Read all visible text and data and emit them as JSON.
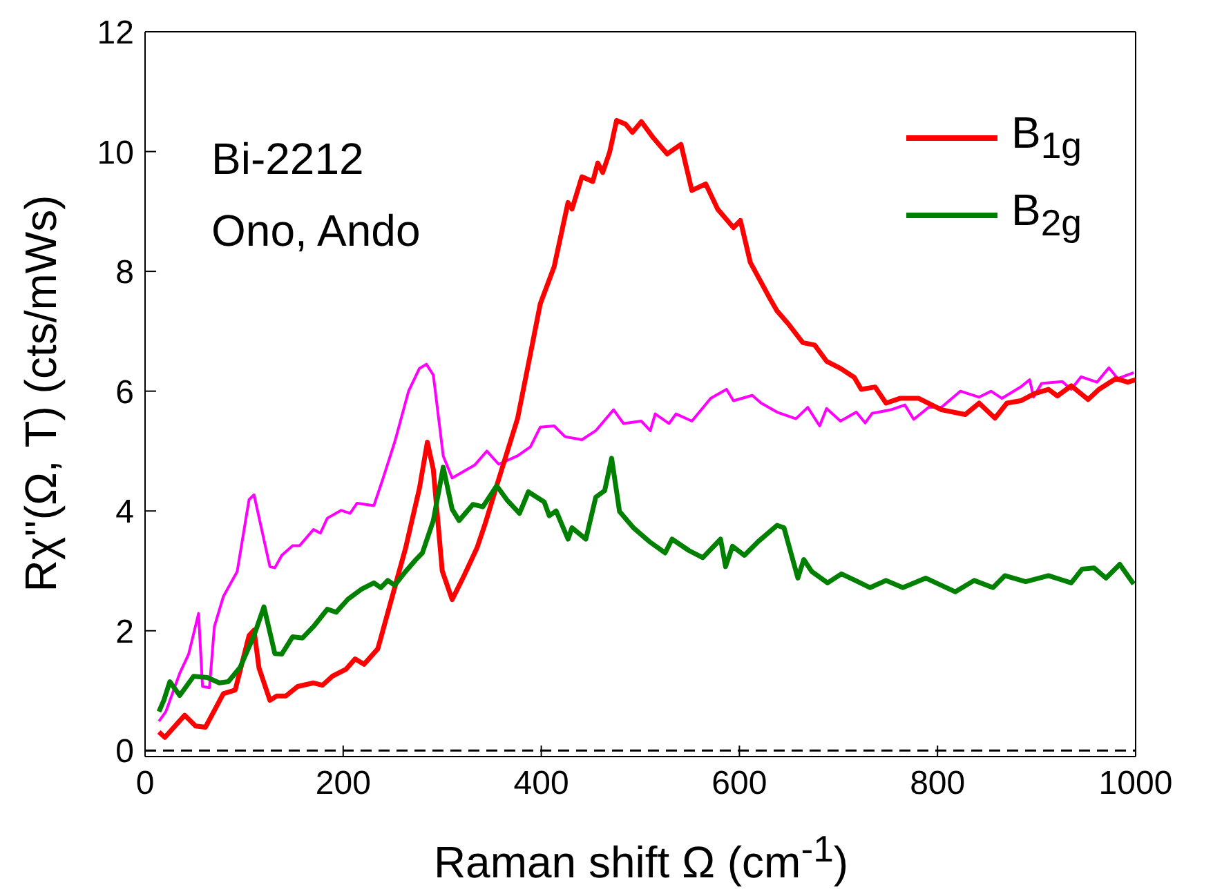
{
  "chart_data": {
    "type": "line",
    "xlabel": "Raman shift Ω (cm$^{-1}$)",
    "ylabel": "Rχ''(Ω, T) (cts/mWs)",
    "xlim": [
      0,
      1000
    ],
    "xticks": [
      0,
      200,
      400,
      600,
      800,
      1000
    ],
    "ylim": [
      -0.1,
      12
    ],
    "yticks": [
      0,
      2,
      4,
      6,
      8,
      10,
      12
    ],
    "legend": "top right",
    "marker": "none",
    "line_style": "solid",
    "annotations": [
      "Bi-2212",
      "Ono, Ando"
    ],
    "ref_lines": [
      {
        "axis": "y",
        "value": 0,
        "color": "#000000",
        "line_style": "dashed"
      }
    ],
    "series": [
      {
        "color": "#ff00ff",
        "x": [
          14,
          21,
          35,
          44,
          54,
          58,
          65,
          70,
          79,
          93,
          105,
          110,
          126,
          131,
          138,
          149,
          156,
          170,
          177,
          184,
          198,
          207,
          214,
          231,
          240,
          252,
          266,
          277,
          284,
          291,
          301,
          310,
          333,
          345,
          357,
          376,
          389,
          399,
          413,
          424,
          441,
          455,
          473,
          483,
          501,
          510,
          515,
          529,
          536,
          552,
          571,
          587,
          594,
          613,
          622,
          638,
          657,
          669,
          681,
          688,
          702,
          718,
          727,
          734,
          753,
          767,
          776,
          791,
          804,
          823,
          842,
          854,
          865,
          884,
          893,
          897,
          905,
          926,
          935,
          945,
          961,
          973,
          982,
          998
        ],
        "values": [
          0.49,
          0.65,
          1.29,
          1.61,
          2.29,
          1.07,
          1.05,
          2.07,
          2.57,
          2.99,
          4.19,
          4.27,
          3.07,
          3.05,
          3.26,
          3.42,
          3.42,
          3.69,
          3.63,
          3.88,
          4.01,
          3.96,
          4.13,
          4.09,
          4.53,
          5.15,
          6.0,
          6.38,
          6.45,
          6.27,
          4.92,
          4.55,
          4.77,
          5.0,
          4.78,
          4.92,
          5.07,
          5.4,
          5.42,
          5.24,
          5.19,
          5.34,
          5.69,
          5.46,
          5.5,
          5.34,
          5.62,
          5.46,
          5.62,
          5.5,
          5.88,
          6.03,
          5.84,
          5.93,
          5.8,
          5.65,
          5.54,
          5.73,
          5.42,
          5.71,
          5.5,
          5.65,
          5.47,
          5.63,
          5.69,
          5.77,
          5.53,
          5.73,
          5.73,
          6.0,
          5.9,
          6.0,
          5.88,
          6.07,
          6.19,
          5.9,
          6.13,
          6.16,
          6.03,
          6.24,
          6.15,
          6.39,
          6.21,
          6.31
        ]
      },
      {
        "name": "B$_{1g}$",
        "color": "#ff0000",
        "x": [
          14,
          20,
          40,
          51,
          61,
          79,
          91,
          105,
          110,
          115,
          126,
          133,
          142,
          154,
          170,
          179,
          189,
          203,
          212,
          221,
          235,
          245,
          263,
          277,
          285,
          291,
          300,
          310,
          322,
          335,
          343,
          357,
          376,
          389,
          399,
          413,
          427,
          431,
          441,
          452,
          457,
          462,
          469,
          476,
          485,
          492,
          501,
          513,
          527,
          541,
          552,
          566,
          578,
          594,
          601,
          611,
          631,
          638,
          650,
          664,
          676,
          688,
          702,
          716,
          723,
          737,
          748,
          762,
          781,
          804,
          828,
          842,
          858,
          870,
          884,
          898,
          912,
          921,
          935,
          952,
          963,
          980,
          992,
          1000
        ],
        "values": [
          0.31,
          0.22,
          0.59,
          0.41,
          0.39,
          0.95,
          1.01,
          1.92,
          2.01,
          1.38,
          0.84,
          0.91,
          0.91,
          1.07,
          1.13,
          1.09,
          1.24,
          1.36,
          1.53,
          1.44,
          1.7,
          2.3,
          3.38,
          4.38,
          5.15,
          4.69,
          3.0,
          2.52,
          2.92,
          3.38,
          3.77,
          4.53,
          5.54,
          6.62,
          7.46,
          8.08,
          9.15,
          9.04,
          9.58,
          9.5,
          9.81,
          9.65,
          9.99,
          10.52,
          10.46,
          10.32,
          10.5,
          10.23,
          9.96,
          10.12,
          9.35,
          9.46,
          9.04,
          8.73,
          8.85,
          8.15,
          7.54,
          7.34,
          7.11,
          6.81,
          6.77,
          6.5,
          6.38,
          6.23,
          6.03,
          6.07,
          5.8,
          5.88,
          5.88,
          5.69,
          5.61,
          5.8,
          5.55,
          5.8,
          5.84,
          5.96,
          6.03,
          5.92,
          6.09,
          5.86,
          6.03,
          6.21,
          6.15,
          6.19
        ]
      },
      {
        "name": "B$_{2g}$",
        "color": "#008000",
        "x": [
          14,
          19,
          25,
          35,
          49,
          63,
          75,
          84,
          96,
          110,
          120,
          131,
          138,
          149,
          159,
          170,
          184,
          193,
          205,
          219,
          231,
          238,
          245,
          252,
          263,
          273,
          280,
          291,
          301,
          310,
          317,
          331,
          341,
          355,
          366,
          378,
          387,
          403,
          408,
          415,
          427,
          431,
          445,
          455,
          464,
          471,
          479,
          493,
          509,
          525,
          532,
          549,
          563,
          581,
          586,
          593,
          605,
          619,
          638,
          645,
          659,
          665,
          673,
          689,
          703,
          717,
          732,
          748,
          765,
          788,
          818,
          837,
          856,
          868,
          889,
          912,
          935,
          946,
          958,
          970,
          984,
          998
        ],
        "values": [
          0.65,
          0.84,
          1.15,
          0.92,
          1.24,
          1.22,
          1.13,
          1.15,
          1.39,
          1.92,
          2.4,
          1.62,
          1.61,
          1.9,
          1.88,
          2.07,
          2.36,
          2.31,
          2.53,
          2.7,
          2.8,
          2.72,
          2.84,
          2.76,
          2.99,
          3.18,
          3.3,
          3.84,
          4.73,
          4.03,
          3.84,
          4.11,
          4.07,
          4.42,
          4.17,
          3.96,
          4.32,
          4.15,
          3.92,
          4.0,
          3.53,
          3.72,
          3.53,
          4.23,
          4.34,
          4.88,
          3.99,
          3.72,
          3.49,
          3.3,
          3.53,
          3.34,
          3.22,
          3.53,
          3.07,
          3.41,
          3.26,
          3.49,
          3.76,
          3.72,
          2.88,
          3.19,
          2.99,
          2.8,
          2.95,
          2.84,
          2.72,
          2.84,
          2.72,
          2.88,
          2.65,
          2.84,
          2.72,
          2.92,
          2.82,
          2.92,
          2.8,
          3.03,
          3.05,
          2.88,
          3.11,
          2.78
        ]
      }
    ]
  }
}
